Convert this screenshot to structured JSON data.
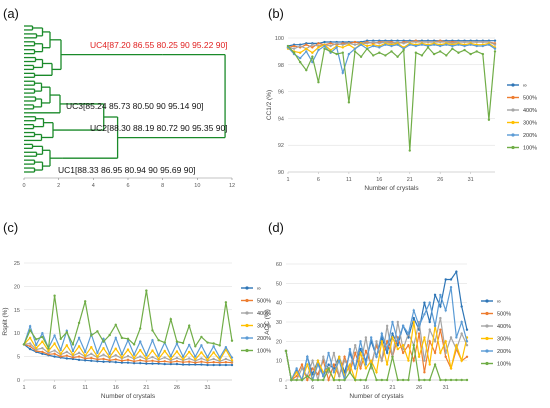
{
  "panels": {
    "a": "(a)",
    "b": "(b)",
    "c": "(c)",
    "d": "(d)"
  },
  "chart_data": [
    {
      "type": "dendrogram",
      "panel": "(a)",
      "xticks": [
        "0",
        "2",
        "4",
        "6",
        "8",
        "10",
        "12"
      ],
      "xlim": [
        0,
        12
      ],
      "clusters": [
        {
          "label": "UC4[87.20 86.55 80.25 90 95.22 90]",
          "color": "#e02020",
          "merge_height": 8.0
        },
        {
          "label": "UC3[85.24 85.73 80.50 90 95.14 90]",
          "color": "#111111",
          "merge_height": 3.0
        },
        {
          "label": "UC2[88.30 88.19 80.72 90 95.35 90]",
          "color": "#111111",
          "merge_height": 4.0
        },
        {
          "label": "UC1[88.33 86.95 80.94 90 95.69 90]",
          "color": "#111111",
          "merge_height": 2.2
        }
      ],
      "root_height": 11.6,
      "line_color": "#1a8a2a"
    },
    {
      "type": "line",
      "panel": "(b)",
      "ylabel": "CC1/2 (%)",
      "xlabel": "Number of crystals",
      "ylim": [
        90,
        100
      ],
      "yticks": [
        "90",
        "92",
        "94",
        "96",
        "98",
        "100"
      ],
      "xticks": [
        "1",
        "6",
        "11",
        "16",
        "21",
        "26",
        "31"
      ],
      "x": [
        1,
        2,
        3,
        4,
        5,
        6,
        7,
        8,
        9,
        10,
        11,
        12,
        13,
        14,
        15,
        16,
        17,
        18,
        19,
        20,
        21,
        22,
        23,
        24,
        25,
        26,
        27,
        28,
        29,
        30,
        31,
        32,
        33,
        34,
        35
      ],
      "series": [
        {
          "name": "∞",
          "color": "#2e75b6",
          "values": [
            99.4,
            99.5,
            99.5,
            99.6,
            99.6,
            99.6,
            99.7,
            99.7,
            99.7,
            99.7,
            99.7,
            99.7,
            99.7,
            99.8,
            99.8,
            99.8,
            99.8,
            99.8,
            99.8,
            99.8,
            99.8,
            99.8,
            99.8,
            99.8,
            99.8,
            99.8,
            99.8,
            99.8,
            99.8,
            99.8,
            99.8,
            99.8,
            99.8,
            99.8,
            99.8
          ]
        },
        {
          "name": "500%",
          "color": "#ed7d31",
          "values": [
            99.3,
            99.4,
            99.3,
            99.5,
            99.3,
            99.6,
            99.5,
            99.6,
            99.5,
            99.6,
            99.6,
            99.7,
            99.6,
            99.7,
            99.6,
            99.7,
            99.7,
            99.7,
            99.6,
            99.7,
            99.7,
            99.8,
            99.7,
            99.7,
            99.7,
            99.8,
            99.7,
            99.7,
            99.7,
            99.7,
            99.7,
            99.7,
            99.7,
            99.7,
            99.6
          ]
        },
        {
          "name": "400%",
          "color": "#a5a5a5",
          "values": [
            99.3,
            99.2,
            99.4,
            99.2,
            99.5,
            99.4,
            99.5,
            99.4,
            99.6,
            99.5,
            99.6,
            99.5,
            99.6,
            99.6,
            99.7,
            99.6,
            99.7,
            99.6,
            99.7,
            99.6,
            99.7,
            99.7,
            99.7,
            99.7,
            99.7,
            99.7,
            99.7,
            99.6,
            99.7,
            99.7,
            99.7,
            99.7,
            99.7,
            99.7,
            99.5
          ]
        },
        {
          "name": "300%",
          "color": "#ffc000",
          "values": [
            99.2,
            99.0,
            98.9,
            99.2,
            98.9,
            99.3,
            99.5,
            99.1,
            99.4,
            99.3,
            99.5,
            99.2,
            99.6,
            99.4,
            99.5,
            99.4,
            99.6,
            99.5,
            99.6,
            99.3,
            99.6,
            99.5,
            99.6,
            99.5,
            99.6,
            99.5,
            99.6,
            99.5,
            99.6,
            99.5,
            99.6,
            99.5,
            99.5,
            99.6,
            99.3
          ]
        },
        {
          "name": "200%",
          "color": "#5b9bd5",
          "values": [
            99.3,
            98.8,
            98.5,
            99.0,
            98.2,
            99.1,
            99.4,
            98.9,
            99.3,
            97.4,
            98.8,
            99.2,
            99.5,
            99.2,
            99.4,
            99.3,
            99.5,
            99.4,
            99.5,
            99.2,
            99.5,
            99.4,
            99.5,
            99.4,
            99.5,
            99.4,
            99.5,
            99.4,
            99.5,
            99.4,
            99.5,
            99.4,
            99.4,
            99.5,
            99.2
          ]
        },
        {
          "name": "100%",
          "color": "#70ad47",
          "values": [
            99.4,
            98.9,
            98.2,
            97.6,
            98.6,
            96.7,
            99.2,
            99.0,
            98.8,
            98.9,
            95.2,
            99.0,
            98.6,
            99.2,
            98.7,
            98.9,
            98.7,
            99.0,
            98.6,
            99.1,
            91.6,
            98.9,
            98.7,
            99.3,
            98.8,
            99.0,
            98.7,
            99.2,
            98.9,
            99.1,
            98.8,
            99.0,
            98.8,
            93.9,
            99.0
          ]
        }
      ]
    },
    {
      "type": "line",
      "panel": "(c)",
      "ylabel": "Rsplit (%)",
      "xlabel": "Number of crystals",
      "ylim": [
        0,
        25
      ],
      "yticks": [
        "0",
        "5",
        "10",
        "15",
        "20",
        "25"
      ],
      "xticks": [
        "1",
        "6",
        "11",
        "16",
        "21",
        "26",
        "31"
      ],
      "x": [
        1,
        2,
        3,
        4,
        5,
        6,
        7,
        8,
        9,
        10,
        11,
        12,
        13,
        14,
        15,
        16,
        17,
        18,
        19,
        20,
        21,
        22,
        23,
        24,
        25,
        26,
        27,
        28,
        29,
        30,
        31,
        32,
        33,
        34,
        35
      ],
      "series": [
        {
          "name": "∞",
          "color": "#2e75b6",
          "values": [
            7.6,
            6.6,
            6.0,
            5.6,
            5.3,
            5.0,
            4.8,
            4.6,
            4.5,
            4.3,
            4.2,
            4.1,
            4.0,
            3.9,
            3.9,
            3.8,
            3.7,
            3.7,
            3.6,
            3.6,
            3.5,
            3.5,
            3.5,
            3.4,
            3.4,
            3.4,
            3.3,
            3.3,
            3.3,
            3.3,
            3.2,
            3.2,
            3.2,
            3.2,
            3.2
          ]
        },
        {
          "name": "500%",
          "color": "#ed7d31",
          "values": [
            7.6,
            7.2,
            6.2,
            6.0,
            5.5,
            5.6,
            5.0,
            5.2,
            4.8,
            5.0,
            4.6,
            4.7,
            4.4,
            4.5,
            4.2,
            4.4,
            4.1,
            4.3,
            4.0,
            4.2,
            4.0,
            4.1,
            3.9,
            4.0,
            3.8,
            4.0,
            3.8,
            3.9,
            3.7,
            3.9,
            3.7,
            3.8,
            3.7,
            3.8,
            3.7
          ]
        },
        {
          "name": "400%",
          "color": "#a5a5a5",
          "values": [
            7.6,
            7.8,
            6.5,
            6.8,
            5.8,
            6.3,
            5.4,
            6.0,
            5.2,
            5.8,
            5.0,
            5.6,
            4.8,
            5.4,
            4.7,
            5.3,
            4.6,
            5.1,
            4.5,
            5.0,
            4.4,
            4.9,
            4.3,
            4.8,
            4.2,
            4.7,
            4.2,
            4.6,
            4.1,
            4.6,
            4.1,
            4.5,
            4.0,
            4.5,
            4.0
          ]
        },
        {
          "name": "300%",
          "color": "#ffc000",
          "values": [
            7.6,
            9.0,
            6.8,
            8.2,
            6.2,
            7.8,
            5.6,
            7.4,
            5.4,
            7.2,
            5.2,
            7.0,
            5.0,
            6.8,
            4.9,
            6.7,
            4.8,
            6.5,
            4.7,
            6.4,
            4.6,
            6.3,
            4.5,
            6.2,
            4.5,
            6.1,
            4.4,
            6.0,
            4.4,
            5.9,
            4.3,
            5.9,
            4.3,
            6.5,
            4.2
          ]
        },
        {
          "name": "200%",
          "color": "#5b9bd5",
          "values": [
            7.6,
            11.5,
            7.5,
            10.0,
            6.8,
            9.5,
            6.4,
            10.5,
            6.2,
            9.0,
            6.0,
            9.8,
            5.8,
            8.8,
            5.6,
            9.0,
            5.5,
            8.5,
            5.4,
            8.2,
            5.3,
            8.5,
            5.2,
            8.0,
            5.1,
            7.8,
            5.0,
            7.5,
            5.0,
            7.4,
            4.9,
            7.2,
            4.8,
            7.0,
            4.8
          ]
        },
        {
          "name": "100%",
          "color": "#70ad47",
          "values": [
            7.6,
            10.6,
            8.7,
            9.2,
            6.8,
            18.0,
            8.8,
            10.2,
            7.6,
            12.2,
            16.8,
            9.5,
            10.4,
            8.2,
            9.6,
            11.8,
            9.0,
            8.8,
            7.6,
            11.0,
            19.1,
            10.6,
            8.5,
            8.0,
            13.0,
            8.2,
            7.9,
            11.6,
            7.2,
            9.2,
            8.0,
            7.8,
            7.4,
            16.6,
            8.4
          ]
        }
      ]
    },
    {
      "type": "line",
      "panel": "(d)",
      "ylabel": "ACC (%)",
      "xlabel": "Number of crystals",
      "ylim": [
        0,
        60
      ],
      "yticks": [
        "0",
        "10",
        "20",
        "30",
        "40",
        "50",
        "60"
      ],
      "xticks": [
        "1",
        "6",
        "11",
        "16",
        "21",
        "26",
        "31"
      ],
      "x": [
        1,
        2,
        3,
        4,
        5,
        6,
        7,
        8,
        9,
        10,
        11,
        12,
        13,
        14,
        15,
        16,
        17,
        18,
        19,
        20,
        21,
        22,
        23,
        24,
        25,
        26,
        27,
        28,
        29,
        30,
        31,
        32,
        33,
        34,
        35
      ],
      "series": [
        {
          "name": "∞",
          "color": "#2e75b6",
          "values": [
            15,
            0,
            5,
            0,
            12,
            3,
            10,
            2,
            8,
            6,
            12,
            4,
            14,
            6,
            16,
            10,
            20,
            12,
            22,
            14,
            24,
            18,
            28,
            22,
            32,
            26,
            40,
            30,
            44,
            38,
            52,
            52,
            56,
            38,
            26
          ]
        },
        {
          "name": "500%",
          "color": "#ed7d31",
          "values": [
            15,
            0,
            2,
            8,
            0,
            6,
            3,
            10,
            0,
            8,
            2,
            12,
            4,
            14,
            6,
            15,
            8,
            18,
            10,
            20,
            12,
            22,
            14,
            18,
            10,
            24,
            4,
            20,
            14,
            26,
            12,
            6,
            16,
            10,
            12
          ]
        },
        {
          "name": "400%",
          "color": "#a5a5a5",
          "values": [
            15,
            0,
            0,
            6,
            2,
            10,
            0,
            12,
            4,
            14,
            2,
            10,
            6,
            18,
            8,
            22,
            6,
            20,
            10,
            28,
            12,
            30,
            16,
            24,
            18,
            30,
            10,
            26,
            20,
            32,
            14,
            22,
            16,
            24,
            18
          ]
        },
        {
          "name": "300%",
          "color": "#ffc000",
          "values": [
            15,
            0,
            4,
            0,
            8,
            0,
            10,
            4,
            6,
            0,
            12,
            2,
            8,
            0,
            14,
            6,
            10,
            4,
            20,
            8,
            22,
            16,
            18,
            10,
            30,
            12,
            22,
            8,
            28,
            14,
            20,
            6,
            18,
            10,
            22
          ]
        },
        {
          "name": "200%",
          "color": "#5b9bd5",
          "values": [
            15,
            0,
            6,
            0,
            12,
            0,
            8,
            2,
            14,
            4,
            10,
            0,
            16,
            6,
            20,
            8,
            22,
            12,
            24,
            16,
            30,
            20,
            28,
            24,
            36,
            28,
            34,
            40,
            28,
            44,
            36,
            48,
            22,
            30,
            20
          ]
        },
        {
          "name": "100%",
          "color": "#70ad47",
          "values": [
            15,
            0,
            0,
            0,
            2,
            0,
            0,
            0,
            6,
            0,
            0,
            0,
            4,
            0,
            0,
            0,
            8,
            0,
            0,
            0,
            12,
            0,
            0,
            0,
            18,
            0,
            0,
            0,
            8,
            0,
            0,
            0,
            0,
            0,
            0
          ]
        }
      ]
    }
  ]
}
